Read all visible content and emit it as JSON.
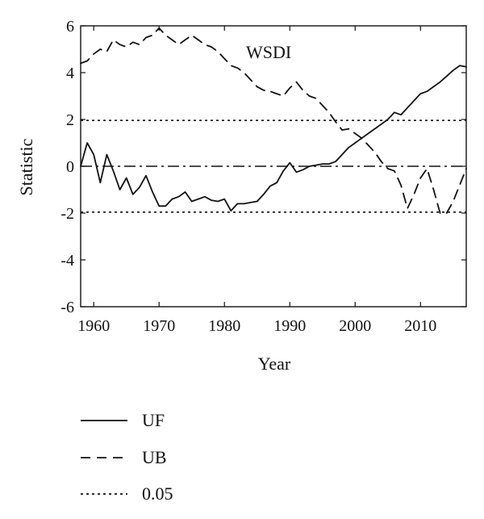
{
  "chart_data": {
    "type": "line",
    "annotation": "WSDI",
    "xlabel": "Year",
    "ylabel": "Statistic",
    "xlim": [
      1958,
      2017
    ],
    "ylim": [
      -6,
      6
    ],
    "xticks": [
      1960,
      1970,
      1980,
      1990,
      2000,
      2010
    ],
    "yticks": [
      6,
      4,
      2,
      0,
      -2,
      -4,
      -6
    ],
    "grid": false,
    "legend_position": "bottom",
    "series": [
      {
        "name": "UF",
        "style": "solid",
        "color": "#111111",
        "x": [
          1958,
          1959,
          1960,
          1961,
          1962,
          1963,
          1964,
          1965,
          1966,
          1967,
          1968,
          1969,
          1970,
          1971,
          1972,
          1973,
          1974,
          1975,
          1976,
          1977,
          1978,
          1979,
          1980,
          1981,
          1982,
          1983,
          1984,
          1985,
          1986,
          1987,
          1988,
          1989,
          1990,
          1991,
          1992,
          1993,
          1994,
          1995,
          1996,
          1997,
          1998,
          1999,
          2000,
          2001,
          2002,
          2003,
          2004,
          2005,
          2006,
          2007,
          2008,
          2009,
          2010,
          2011,
          2012,
          2013,
          2014,
          2015,
          2016,
          2017
        ],
        "y": [
          0.0,
          1.0,
          0.5,
          -0.7,
          0.5,
          -0.2,
          -1.0,
          -0.5,
          -1.2,
          -0.9,
          -0.4,
          -1.1,
          -1.7,
          -1.7,
          -1.4,
          -1.3,
          -1.1,
          -1.5,
          -1.4,
          -1.3,
          -1.45,
          -1.5,
          -1.4,
          -1.9,
          -1.6,
          -1.6,
          -1.55,
          -1.5,
          -1.2,
          -0.85,
          -0.7,
          -0.2,
          0.15,
          -0.25,
          -0.15,
          0.0,
          0.05,
          0.1,
          0.1,
          0.2,
          0.5,
          0.8,
          1.0,
          1.2,
          1.4,
          1.6,
          1.8,
          2.0,
          2.3,
          2.2,
          2.5,
          2.8,
          3.1,
          3.2,
          3.4,
          3.6,
          3.85,
          4.1,
          4.3,
          4.25
        ]
      },
      {
        "name": "UB",
        "style": "dashed",
        "color": "#111111",
        "x": [
          1958,
          1959,
          1960,
          1961,
          1962,
          1963,
          1964,
          1965,
          1966,
          1967,
          1968,
          1969,
          1970,
          1971,
          1972,
          1973,
          1974,
          1975,
          1976,
          1977,
          1978,
          1979,
          1980,
          1981,
          1982,
          1983,
          1984,
          1985,
          1986,
          1987,
          1988,
          1989,
          1990,
          1991,
          1992,
          1993,
          1994,
          1995,
          1996,
          1997,
          1998,
          1999,
          2000,
          2001,
          2002,
          2003,
          2004,
          2005,
          2006,
          2007,
          2008,
          2009,
          2010,
          2011,
          2012,
          2013,
          2014,
          2015,
          2016,
          2017
        ],
        "y": [
          4.4,
          4.5,
          4.8,
          5.0,
          4.9,
          5.4,
          5.2,
          5.1,
          5.3,
          5.2,
          5.5,
          5.6,
          5.9,
          5.6,
          5.4,
          5.2,
          5.4,
          5.6,
          5.4,
          5.2,
          5.1,
          4.9,
          4.6,
          4.3,
          4.2,
          4.0,
          3.7,
          3.4,
          3.25,
          3.2,
          3.1,
          3.0,
          3.35,
          3.6,
          3.25,
          3.0,
          2.9,
          2.6,
          2.3,
          1.9,
          1.55,
          1.6,
          1.4,
          1.2,
          0.9,
          0.6,
          0.2,
          -0.1,
          -0.2,
          -0.8,
          -1.8,
          -1.2,
          -0.5,
          -0.1,
          -1.0,
          -2.0,
          -2.0,
          -1.5,
          -0.8,
          -0.1
        ]
      },
      {
        "name": "0.05",
        "style": "dotted",
        "color": "#111111",
        "levels": [
          1.96,
          -1.96
        ]
      }
    ],
    "reference_line": {
      "y": 0,
      "style": "dash-dot"
    }
  },
  "legend": [
    {
      "label": "UF",
      "style": "solid"
    },
    {
      "label": "UB",
      "style": "dashed"
    },
    {
      "label": "0.05",
      "style": "dotted"
    }
  ]
}
